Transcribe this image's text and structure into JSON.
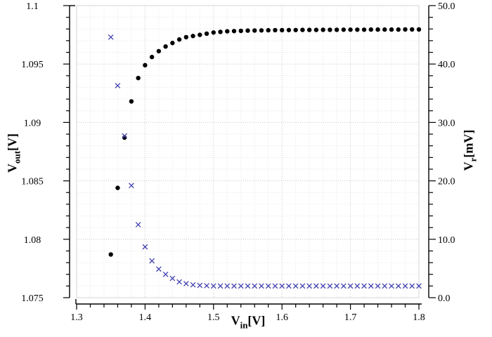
{
  "chart_data": {
    "type": "scatter",
    "x_axis": {
      "min": 1.3,
      "max": 1.8,
      "major_values": [
        1.3,
        1.4,
        1.5,
        1.6,
        1.7,
        1.8
      ],
      "major_labels": [
        "1.3",
        "1.4",
        "1.5",
        "1.6",
        "1.7",
        "1.8"
      ],
      "minor_step": 0.02,
      "title": {
        "main": "V",
        "sub": "in",
        "unit": "[V]"
      }
    },
    "y_left": {
      "min": 1.075,
      "max": 1.1,
      "major_values": [
        1.1,
        1.095,
        1.09,
        1.085,
        1.08,
        1.075
      ],
      "major_labels": [
        "1.1",
        "1.095",
        "1.09",
        "1.085",
        "1.08",
        "1.075"
      ],
      "minor_step": 0.001,
      "title": {
        "main": "V",
        "sub": "out",
        "unit": "[V]"
      }
    },
    "y_right": {
      "min": 0.0,
      "max": 50.0,
      "major_values": [
        50.0,
        40.0,
        30.0,
        20.0,
        10.0,
        0.0
      ],
      "major_labels": [
        "50.0",
        "40.0",
        "30.0",
        "20.0",
        "10.0",
        "0.0"
      ],
      "minor_step": 2.0,
      "title": {
        "main": "V",
        "sub": "r",
        "unit": "[mV]"
      }
    },
    "grid": {
      "major_on": true,
      "minor_on": true
    },
    "series": [
      {
        "name": "V_out",
        "axis": "left",
        "marker": "circle",
        "color": "#000000",
        "x": [
          1.35,
          1.36,
          1.37,
          1.38,
          1.39,
          1.4,
          1.41,
          1.42,
          1.43,
          1.44,
          1.45,
          1.46,
          1.47,
          1.48,
          1.49,
          1.5,
          1.51,
          1.52,
          1.53,
          1.54,
          1.55,
          1.56,
          1.57,
          1.58,
          1.59,
          1.6,
          1.61,
          1.62,
          1.63,
          1.64,
          1.65,
          1.66,
          1.67,
          1.68,
          1.69,
          1.7,
          1.71,
          1.72,
          1.73,
          1.74,
          1.75,
          1.76,
          1.77,
          1.78,
          1.79,
          1.8
        ],
        "y": [
          1.0787,
          1.0844,
          1.0887,
          1.0918,
          1.0938,
          1.0949,
          1.0956,
          1.0961,
          1.0965,
          1.0968,
          1.0971,
          1.0973,
          1.0974,
          1.0975,
          1.0976,
          1.0977,
          1.09775,
          1.0978,
          1.09782,
          1.09784,
          1.09786,
          1.09787,
          1.09788,
          1.09789,
          1.0979,
          1.0979,
          1.09791,
          1.09791,
          1.09792,
          1.09792,
          1.09792,
          1.09793,
          1.09793,
          1.09793,
          1.09794,
          1.09794,
          1.09794,
          1.09794,
          1.09795,
          1.09795,
          1.09795,
          1.09795,
          1.09795,
          1.09796,
          1.09796,
          1.09796
        ]
      },
      {
        "name": "V_r",
        "axis": "right",
        "marker": "x",
        "color": "#4242b0",
        "x": [
          1.35,
          1.36,
          1.37,
          1.38,
          1.39,
          1.4,
          1.41,
          1.42,
          1.43,
          1.44,
          1.45,
          1.46,
          1.47,
          1.48,
          1.49,
          1.5,
          1.51,
          1.52,
          1.53,
          1.54,
          1.55,
          1.56,
          1.57,
          1.58,
          1.59,
          1.6,
          1.61,
          1.62,
          1.63,
          1.64,
          1.65,
          1.66,
          1.67,
          1.68,
          1.69,
          1.7,
          1.71,
          1.72,
          1.73,
          1.74,
          1.75,
          1.76,
          1.77,
          1.78,
          1.79,
          1.8
        ],
        "y": [
          44.6,
          36.3,
          27.7,
          19.2,
          12.5,
          8.7,
          6.3,
          4.9,
          4.0,
          3.3,
          2.7,
          2.4,
          2.2,
          2.1,
          2.05,
          2.0,
          2.0,
          2.0,
          2.0,
          2.0,
          2.0,
          2.0,
          2.0,
          2.0,
          2.0,
          2.0,
          2.0,
          2.0,
          2.0,
          2.0,
          2.0,
          2.0,
          2.0,
          2.0,
          2.0,
          2.0,
          2.0,
          2.0,
          2.0,
          2.0,
          2.0,
          2.0,
          2.0,
          2.0,
          2.0,
          2.0
        ]
      }
    ],
    "colors": {
      "background": "#ffffff",
      "plot_border": "#d6d6d6",
      "grid_major": "#c6c6c6",
      "grid_minor": "#e6e6e6",
      "axis_line": "#000000",
      "tick_text": "#000000"
    }
  }
}
